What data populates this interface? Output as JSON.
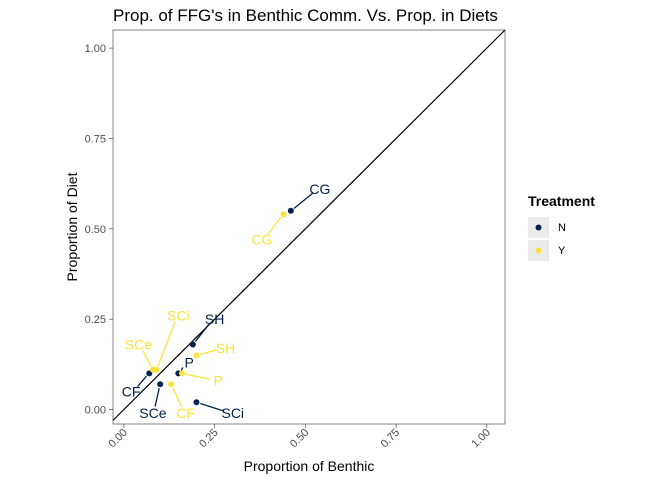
{
  "chart_data": {
    "type": "scatter",
    "title": "Prop. of FFG's in Benthic Comm. Vs. Prop. in Diets",
    "xlabel": "Proportion of Benthic",
    "ylabel": "Proportion of Diet",
    "xlim": [
      -0.03,
      1.05
    ],
    "ylim": [
      -0.04,
      1.05
    ],
    "xticks": [
      "0.00",
      "0.25",
      "0.50",
      "0.75",
      "1.00"
    ],
    "yticks": [
      "0.00",
      "0.25",
      "0.50",
      "0.75",
      "1.00"
    ],
    "reference_line": "y = x",
    "grid": false,
    "legend": {
      "title": "Treatment",
      "placement": "right",
      "entries": [
        {
          "label": "N",
          "color": "#00204d"
        },
        {
          "label": "Y",
          "color": "#ffe13b"
        }
      ]
    },
    "series": [
      {
        "name": "N",
        "color": "#00204d",
        "points": [
          {
            "label": "CG",
            "x": 0.46,
            "y": 0.55,
            "label_x": 0.54,
            "label_y": 0.61
          },
          {
            "label": "SH",
            "x": 0.19,
            "y": 0.18,
            "label_x": 0.25,
            "label_y": 0.25
          },
          {
            "label": "P",
            "x": 0.15,
            "y": 0.1,
            "label_x": 0.18,
            "label_y": 0.13
          },
          {
            "label": "CF",
            "x": 0.07,
            "y": 0.1,
            "label_x": 0.02,
            "label_y": 0.05
          },
          {
            "label": "SCe",
            "x": 0.1,
            "y": 0.07,
            "label_x": 0.08,
            "label_y": -0.01
          },
          {
            "label": "SCi",
            "x": 0.2,
            "y": 0.02,
            "label_x": 0.3,
            "label_y": -0.01
          }
        ]
      },
      {
        "name": "Y",
        "color": "#ffe13b",
        "points": [
          {
            "label": "CG",
            "x": 0.44,
            "y": 0.54,
            "label_x": 0.38,
            "label_y": 0.47
          },
          {
            "label": "SCi",
            "x": 0.09,
            "y": 0.11,
            "label_x": 0.15,
            "label_y": 0.26
          },
          {
            "label": "SCe",
            "x": 0.08,
            "y": 0.11,
            "label_x": 0.04,
            "label_y": 0.18
          },
          {
            "label": "SH",
            "x": 0.2,
            "y": 0.15,
            "label_x": 0.28,
            "label_y": 0.17
          },
          {
            "label": "P",
            "x": 0.16,
            "y": 0.1,
            "label_x": 0.26,
            "label_y": 0.08
          },
          {
            "label": "CF",
            "x": 0.13,
            "y": 0.07,
            "label_x": 0.17,
            "label_y": -0.01
          }
        ]
      }
    ]
  }
}
